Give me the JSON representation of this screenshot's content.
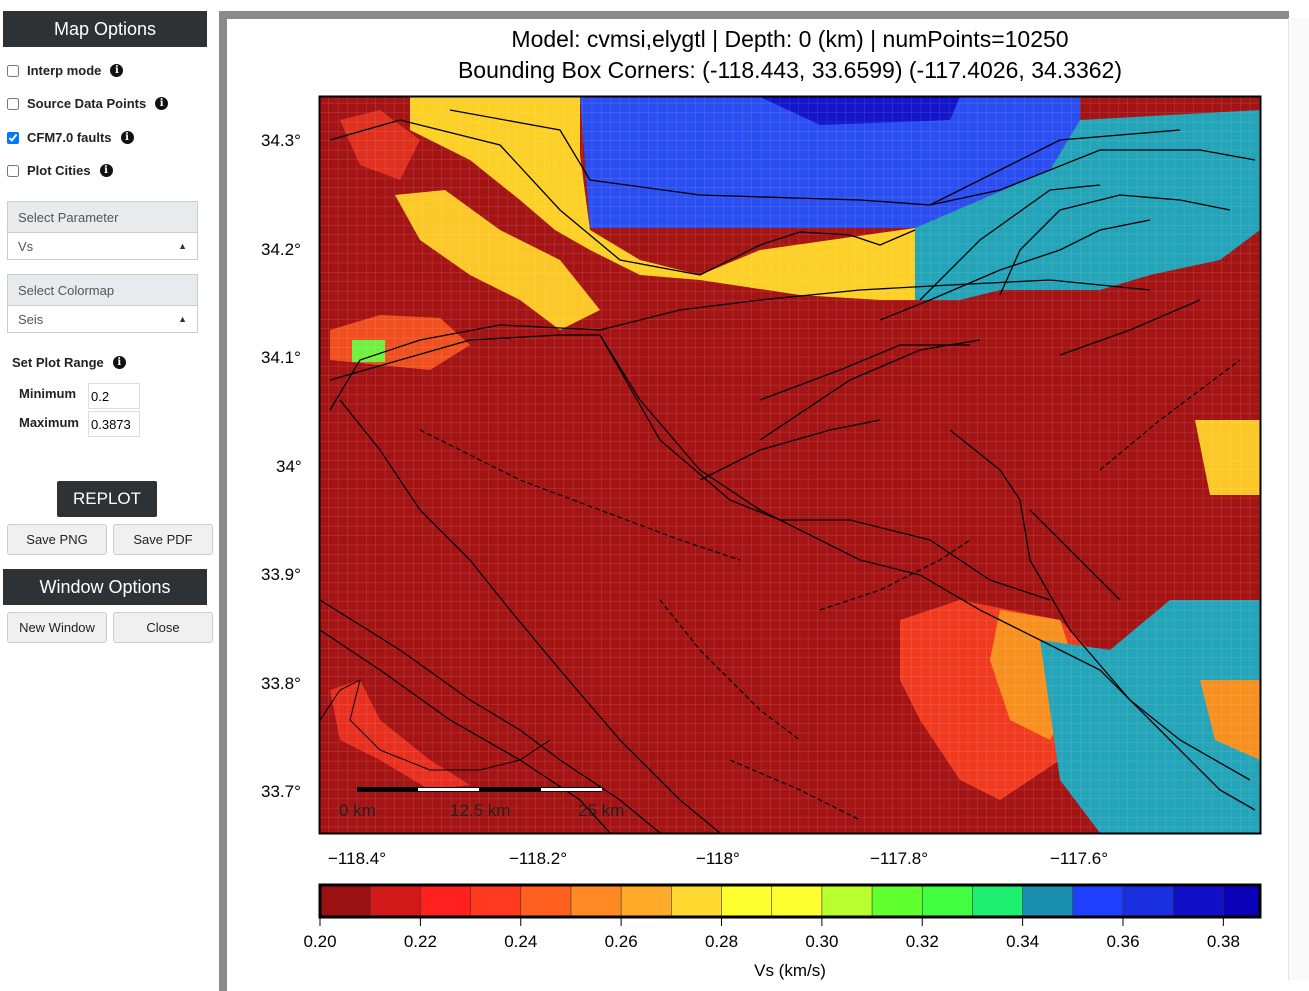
{
  "sidebar": {
    "map_options_title": "Map Options",
    "options": [
      {
        "label": "Interp mode",
        "checked": false
      },
      {
        "label": "Source Data Points",
        "checked": false
      },
      {
        "label": "CFM7.0 faults",
        "checked": true
      },
      {
        "label": "Plot Cities",
        "checked": false
      }
    ],
    "parameter": {
      "label": "Select Parameter",
      "value": "Vs"
    },
    "colormap": {
      "label": "Select Colormap",
      "value": "Seis"
    },
    "plot_range": {
      "label": "Set Plot Range",
      "min_label": "Minimum",
      "min_value": "0.2",
      "max_label": "Maximum",
      "max_value": "0.3873"
    },
    "replot": "REPLOT",
    "save_png": "Save PNG",
    "save_pdf": "Save PDF",
    "window_options_title": "Window Options",
    "new_window": "New Window",
    "close": "Close"
  },
  "plot": {
    "title_line1": "Model: cvmsi,elygtl | Depth: 0 (km) | numPoints=10250",
    "title_line2": "Bounding Box Corners: (-118.443, 33.6599) (-117.4026, 34.3362)",
    "lat_ticks": [
      "34.3°",
      "34.2°",
      "34.1°",
      "34°",
      "33.9°",
      "33.8°",
      "33.7°"
    ],
    "lon_ticks": [
      "−118.4°",
      "−118.2°",
      "−118°",
      "−117.8°",
      "−117.6°"
    ],
    "scale_labels": [
      "0 km",
      "12.5 km",
      "25 km"
    ],
    "colorbar": {
      "label": "Vs (km/s)",
      "ticks": [
        "0.20",
        "0.22",
        "0.24",
        "0.26",
        "0.28",
        "0.30",
        "0.32",
        "0.34",
        "0.36",
        "0.38"
      ],
      "range": [
        0.2,
        0.3873
      ],
      "colors": [
        "#9b1010",
        "#d21a1a",
        "#ff2020",
        "#ff3a20",
        "#ff6020",
        "#ff8a24",
        "#ffaa28",
        "#ffd830",
        "#ffff30",
        "#ffff30",
        "#b8ff30",
        "#60ff30",
        "#40ff40",
        "#20ee70",
        "#1a90b0",
        "#2040ff",
        "#1a30e0",
        "#1010c8",
        "#0a00b8"
      ]
    }
  }
}
